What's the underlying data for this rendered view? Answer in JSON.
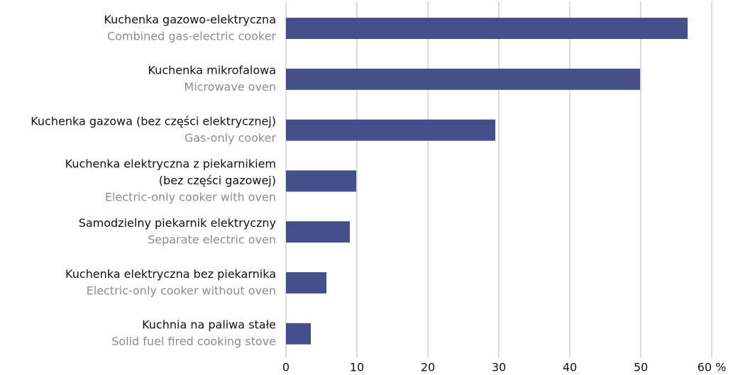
{
  "chart_data": {
    "type": "bar",
    "orientation": "horizontal",
    "categories": [
      [
        "Kuchenka gazowo-elektryczna"
      ],
      [
        "Kuchenka mikrofalowa"
      ],
      [
        "Kuchenka gazowa (bez części elektrycznej)"
      ],
      [
        "Kuchenka elektryczna z piekarnikiem",
        "(bez części gazowej)"
      ],
      [
        "Samodzielny piekarnik elektryczny"
      ],
      [
        "Kuchenka elektryczna bez piekarnika"
      ],
      [
        "Kuchnia na paliwa stałe"
      ]
    ],
    "categories_en": [
      "Combined gas-electric cooker",
      "Microwave oven",
      "Gas-only cooker",
      "Electric-only cooker with oven",
      "Separate electric oven",
      "Electric-only cooker without oven",
      "Solid fuel fired cooking stove"
    ],
    "values": [
      56.6,
      49.9,
      29.5,
      9.9,
      9.0,
      5.7,
      3.5
    ],
    "color": "#45508b",
    "xlim": [
      0,
      60
    ],
    "xticks": [
      0,
      10,
      20,
      30,
      40,
      50,
      {
        "value": 60,
        "label": "60 %"
      }
    ],
    "grid": true
  }
}
